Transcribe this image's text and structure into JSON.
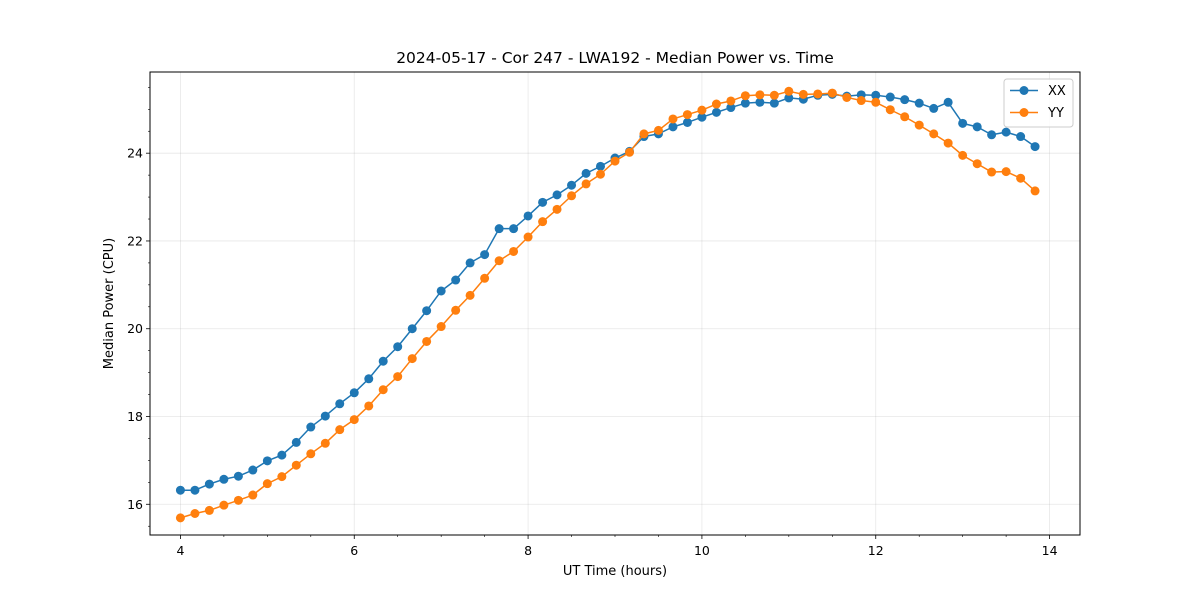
{
  "chart_data": {
    "type": "line",
    "title": "2024-05-17 - Cor 247 - LWA192 - Median Power vs. Time",
    "xlabel": "UT Time (hours)",
    "ylabel": "Median Power (CPU)",
    "xlim": [
      3.65,
      14.35
    ],
    "ylim": [
      15.3,
      25.85
    ],
    "xticks": [
      4,
      6,
      8,
      10,
      12,
      14
    ],
    "yticks": [
      16,
      18,
      20,
      22,
      24
    ],
    "grid": true,
    "legend_position": "top-right",
    "x": [
      4.0,
      4.167,
      4.333,
      4.5,
      4.667,
      4.833,
      5.0,
      5.167,
      5.333,
      5.5,
      5.667,
      5.833,
      6.0,
      6.167,
      6.333,
      6.5,
      6.667,
      6.833,
      7.0,
      7.167,
      7.333,
      7.5,
      7.667,
      7.833,
      8.0,
      8.167,
      8.333,
      8.5,
      8.667,
      8.833,
      9.0,
      9.167,
      9.333,
      9.5,
      9.667,
      9.833,
      10.0,
      10.167,
      10.333,
      10.5,
      10.667,
      10.833,
      11.0,
      11.167,
      11.333,
      11.5,
      11.667,
      11.833,
      12.0,
      12.167,
      12.333,
      12.5,
      12.667,
      12.833,
      13.0,
      13.167,
      13.333,
      13.5,
      13.667,
      13.833
    ],
    "series": [
      {
        "name": "XX",
        "color": "#1f77b4",
        "values": [
          16.32,
          16.32,
          16.46,
          16.57,
          16.64,
          16.78,
          16.99,
          17.12,
          17.41,
          17.76,
          18.01,
          18.29,
          18.54,
          18.86,
          19.26,
          19.59,
          20.0,
          20.41,
          20.86,
          21.11,
          21.5,
          21.69,
          22.28,
          22.28,
          22.57,
          22.88,
          23.05,
          23.27,
          23.54,
          23.7,
          23.89,
          24.04,
          24.38,
          24.44,
          24.6,
          24.7,
          24.82,
          24.93,
          25.04,
          25.14,
          25.16,
          25.14,
          25.26,
          25.23,
          25.32,
          25.34,
          25.3,
          25.33,
          25.32,
          25.28,
          25.22,
          25.14,
          25.02,
          25.16,
          24.68,
          24.6,
          24.42,
          24.48,
          24.38,
          24.15
        ]
      },
      {
        "name": "YY",
        "color": "#ff7f0e",
        "values": [
          15.69,
          15.79,
          15.86,
          15.98,
          16.09,
          16.21,
          16.47,
          16.63,
          16.89,
          17.15,
          17.39,
          17.7,
          17.93,
          18.24,
          18.61,
          18.91,
          19.32,
          19.71,
          20.05,
          20.42,
          20.76,
          21.15,
          21.55,
          21.76,
          22.09,
          22.44,
          22.72,
          23.03,
          23.3,
          23.52,
          23.82,
          24.02,
          24.44,
          24.52,
          24.78,
          24.88,
          24.98,
          25.12,
          25.19,
          25.31,
          25.33,
          25.32,
          25.41,
          25.34,
          25.35,
          25.37,
          25.27,
          25.2,
          25.16,
          24.99,
          24.83,
          24.64,
          24.44,
          24.23,
          23.95,
          23.76,
          23.57,
          23.58,
          23.43,
          23.14
        ]
      }
    ]
  },
  "colors": {
    "xx": "#1f77b4",
    "yy": "#ff7f0e"
  }
}
